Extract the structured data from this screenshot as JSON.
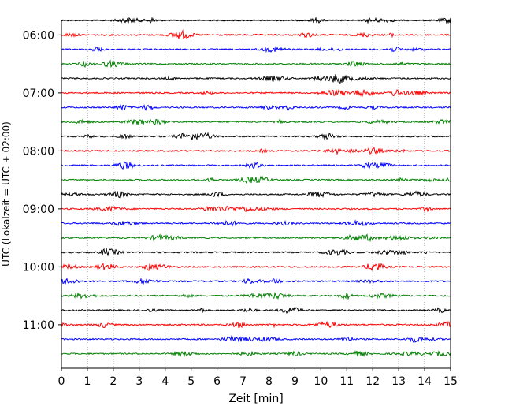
{
  "chart_data": {
    "type": "line",
    "title": "",
    "xlabel": "Zeit  [min]",
    "ylabel": "UTC (Lokalzeit = UTC + 02:00)",
    "xlim": [
      0,
      15
    ],
    "x_ticks": [
      0,
      1,
      2,
      3,
      4,
      5,
      6,
      7,
      8,
      9,
      10,
      11,
      12,
      13,
      14,
      15
    ],
    "y_time_range": [
      "05:45",
      "11:45"
    ],
    "y_ticks": [
      "06:00",
      "07:00",
      "08:00",
      "09:00",
      "10:00",
      "11:00"
    ],
    "trace_interval_min": 15,
    "grid": "vertical-dotted",
    "legend": "none",
    "colors": [
      "#000000",
      "#ff0000",
      "#0000ff",
      "#008000"
    ],
    "series": [
      {
        "start": "05:45",
        "color": "#000000"
      },
      {
        "start": "06:00",
        "color": "#ff0000"
      },
      {
        "start": "06:15",
        "color": "#0000ff"
      },
      {
        "start": "06:30",
        "color": "#008000"
      },
      {
        "start": "06:45",
        "color": "#000000"
      },
      {
        "start": "07:00",
        "color": "#ff0000"
      },
      {
        "start": "07:15",
        "color": "#0000ff"
      },
      {
        "start": "07:30",
        "color": "#008000"
      },
      {
        "start": "07:45",
        "color": "#000000"
      },
      {
        "start": "08:00",
        "color": "#ff0000"
      },
      {
        "start": "08:15",
        "color": "#0000ff"
      },
      {
        "start": "08:30",
        "color": "#008000"
      },
      {
        "start": "08:45",
        "color": "#000000"
      },
      {
        "start": "09:00",
        "color": "#ff0000"
      },
      {
        "start": "09:15",
        "color": "#0000ff"
      },
      {
        "start": "09:30",
        "color": "#008000"
      },
      {
        "start": "09:45",
        "color": "#000000"
      },
      {
        "start": "10:00",
        "color": "#ff0000"
      },
      {
        "start": "10:15",
        "color": "#0000ff"
      },
      {
        "start": "10:30",
        "color": "#008000"
      },
      {
        "start": "10:45",
        "color": "#000000"
      },
      {
        "start": "11:00",
        "color": "#ff0000"
      },
      {
        "start": "11:15",
        "color": "#0000ff"
      },
      {
        "start": "11:30",
        "color": "#008000"
      }
    ]
  }
}
